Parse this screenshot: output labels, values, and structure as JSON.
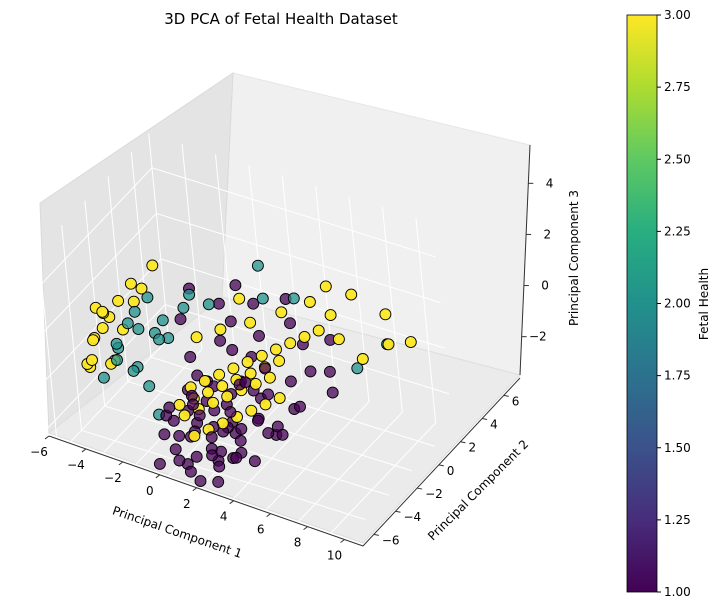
{
  "chart_data": {
    "type": "scatter",
    "title": "3D PCA of Fetal Health Dataset",
    "xlabel": "Principal Component 1",
    "ylabel": "Principal Component 2",
    "zlabel": "Principal Component 3",
    "xlim": [
      -6,
      11
    ],
    "ylim": [
      -7,
      7.5
    ],
    "zlim": [
      -3.5,
      5.5
    ],
    "xticks": [
      "−6",
      "−4",
      "−2",
      "0",
      "2",
      "4",
      "6",
      "8",
      "10"
    ],
    "yticks": [
      "−6",
      "−4",
      "−2",
      "0",
      "2",
      "4",
      "6"
    ],
    "zticks": [
      "−2",
      "0",
      "2",
      "4"
    ],
    "grid": true,
    "colorbar": {
      "label": "Fetal Health",
      "range": [
        1.0,
        3.0
      ],
      "colormap": "viridis",
      "ticks": [
        "1.00",
        "1.25",
        "1.50",
        "1.75",
        "2.00",
        "2.25",
        "2.50",
        "2.75",
        "3.00"
      ]
    },
    "series": [
      {
        "value": 1,
        "color": "#440154",
        "points": [
          [
            0.6,
            0.5,
            -2.3
          ],
          [
            1.2,
            -0.6,
            -1.8
          ],
          [
            2.1,
            1.3,
            -1.2
          ],
          [
            0.2,
            -1.4,
            -1.5
          ],
          [
            1.7,
            0.3,
            -2.7
          ],
          [
            2.8,
            -0.8,
            -0.9
          ],
          [
            0.9,
            1.8,
            -2.0
          ],
          [
            3.4,
            0.6,
            -1.6
          ],
          [
            1.5,
            -1.9,
            -1.0
          ],
          [
            2.4,
            2.2,
            -0.6
          ],
          [
            0.1,
            0.9,
            -0.8
          ],
          [
            3.9,
            -0.2,
            -2.1
          ],
          [
            1.1,
            -0.1,
            -0.3
          ],
          [
            2.9,
            1.1,
            -2.5
          ],
          [
            0.5,
            -0.8,
            -2.9
          ],
          [
            4.3,
            0.9,
            -1.1
          ],
          [
            1.9,
            -1.2,
            -2.2
          ],
          [
            0.8,
            1.4,
            -1.4
          ],
          [
            3.1,
            -1.5,
            -1.7
          ],
          [
            2.2,
            0.1,
            -3.0
          ],
          [
            -0.4,
            0.2,
            -1.9
          ],
          [
            1.4,
            2.6,
            -1.6
          ],
          [
            3.6,
            1.6,
            -0.4
          ],
          [
            2.6,
            -0.4,
            -2.9
          ],
          [
            0.3,
            -2.1,
            -2.4
          ],
          [
            4.8,
            0.2,
            -0.7
          ],
          [
            1.8,
            0.8,
            -0.2
          ],
          [
            2.7,
            -2.1,
            -2.6
          ],
          [
            0.0,
            1.5,
            -2.6
          ],
          [
            3.3,
            2.5,
            -1.3
          ],
          [
            1.3,
            -1.0,
            -3.1
          ],
          [
            4.1,
            -0.9,
            -1.9
          ],
          [
            2.0,
            1.9,
            -2.8
          ],
          [
            0.7,
            0.0,
            -1.1
          ],
          [
            3.7,
            -0.5,
            -0.2
          ],
          [
            5.2,
            1.2,
            -1.4
          ],
          [
            1.6,
            -2.4,
            -1.3
          ],
          [
            2.5,
            0.7,
            -1.8
          ],
          [
            0.4,
            2.1,
            -1.0
          ],
          [
            3.0,
            -1.1,
            -3.1
          ],
          [
            -0.2,
            -0.6,
            -1.2
          ],
          [
            4.5,
            1.9,
            -2.3
          ],
          [
            1.0,
            0.6,
            0.2
          ],
          [
            2.3,
            -1.6,
            0.4
          ],
          [
            3.8,
            0.3,
            0.6
          ],
          [
            5.6,
            -0.1,
            -0.9
          ],
          [
            0.9,
            -1.7,
            0.0
          ],
          [
            2.8,
            2.7,
            0.3
          ],
          [
            4.6,
            1.4,
            0.9
          ],
          [
            6.0,
            0.5,
            -1.2
          ],
          [
            1.7,
            1.0,
            -3.2
          ],
          [
            3.2,
            0.0,
            -2.6
          ],
          [
            0.6,
            -0.3,
            -3.3
          ],
          [
            2.1,
            -0.9,
            -0.5
          ],
          [
            4.0,
            2.2,
            -0.8
          ],
          [
            6.4,
            1.1,
            -0.3
          ],
          [
            5.0,
            -0.6,
            -2.0
          ],
          [
            3.5,
            -1.9,
            -0.6
          ],
          [
            1.2,
            2.4,
            0.8
          ],
          [
            0.2,
            1.2,
            0.5
          ],
          [
            2.6,
            1.5,
            1.2
          ],
          [
            4.4,
            0.0,
            1.0
          ],
          [
            5.8,
            1.8,
            0.4
          ],
          [
            7.0,
            0.8,
            0.1
          ],
          [
            6.6,
            2.4,
            0.7
          ],
          [
            3.0,
            3.2,
            1.0
          ],
          [
            1.5,
            3.0,
            1.4
          ],
          [
            -0.8,
            2.0,
            1.5
          ],
          [
            0.4,
            3.6,
            1.6
          ],
          [
            2.2,
            4.0,
            1.8
          ],
          [
            4.2,
            4.2,
            1.3
          ],
          [
            5.5,
            3.4,
            1.1
          ],
          [
            7.4,
            2.9,
            0.6
          ],
          [
            8.0,
            2.2,
            0.2
          ],
          [
            6.9,
            3.8,
            1.4
          ],
          [
            3.6,
            4.8,
            1.9
          ],
          [
            0.9,
            4.4,
            2.1
          ],
          [
            -1.2,
            3.4,
            2.0
          ],
          [
            1.8,
            2.0,
            -2.4
          ],
          [
            2.9,
            -0.2,
            -1.4
          ]
        ]
      },
      {
        "value": 2,
        "color": "#21918c",
        "points": [
          [
            -3.0,
            -0.4,
            1.2
          ],
          [
            -2.2,
            0.4,
            1.6
          ],
          [
            -2.6,
            -1.0,
            0.9
          ],
          [
            -1.6,
            0.9,
            1.3
          ],
          [
            -3.4,
            0.2,
            0.6
          ],
          [
            -2.0,
            -0.2,
            0.3
          ],
          [
            -1.2,
            1.4,
            0.9
          ],
          [
            -2.8,
            1.0,
            1.9
          ],
          [
            -1.8,
            -0.8,
            0.5
          ],
          [
            -0.9,
            0.3,
            1.5
          ],
          [
            -2.4,
            1.6,
            2.3
          ],
          [
            -0.4,
            1.8,
            2.2
          ],
          [
            -3.2,
            -1.4,
            0.2
          ],
          [
            -1.4,
            -0.2,
            -0.4
          ],
          [
            -1.9,
            2.0,
            1.2
          ],
          [
            -0.8,
            -0.4,
            -1.4
          ],
          [
            3.3,
            3.4,
            2.6
          ],
          [
            4.5,
            4.3,
            2.4
          ],
          [
            8.4,
            3.8,
            0.5
          ],
          [
            9.6,
            4.8,
            1.3
          ],
          [
            2.4,
            4.4,
            3.3
          ],
          [
            -0.6,
            2.6,
            2.3
          ],
          [
            0.4,
            2.8,
            2.0
          ],
          [
            -2.5,
            0.0,
            2.0
          ]
        ]
      },
      {
        "value": 3,
        "color": "#fde725",
        "points": [
          [
            -4.0,
            -0.5,
            2.6
          ],
          [
            -4.2,
            0.3,
            1.9
          ],
          [
            -3.8,
            -1.2,
            1.6
          ],
          [
            -4.4,
            1.0,
            1.3
          ],
          [
            -3.6,
            0.8,
            2.3
          ],
          [
            -4.5,
            -0.2,
            1.0
          ],
          [
            -3.9,
            -1.7,
            0.8
          ],
          [
            -4.1,
            1.6,
            0.5
          ],
          [
            -3.3,
            -0.9,
            2.8
          ],
          [
            -4.3,
            -1.0,
            0.2
          ],
          [
            -3.5,
            1.9,
            1.7
          ],
          [
            -3.7,
            -0.1,
            0.0
          ],
          [
            -2.9,
            -1.5,
            2.5
          ],
          [
            -4.0,
            0.6,
            -0.3
          ],
          [
            -3.1,
            1.3,
            2.9
          ],
          [
            -2.7,
            2.6,
            3.1
          ],
          [
            -3.2,
            -2.2,
            1.4
          ],
          [
            -2.4,
            1.2,
            2.9
          ],
          [
            1.0,
            0.0,
            0.0
          ],
          [
            1.6,
            0.4,
            0.2
          ],
          [
            2.2,
            0.8,
            0.4
          ],
          [
            2.8,
            1.2,
            0.6
          ],
          [
            3.4,
            1.6,
            0.8
          ],
          [
            4.0,
            2.0,
            1.0
          ],
          [
            4.6,
            2.4,
            1.2
          ],
          [
            5.2,
            2.8,
            1.4
          ],
          [
            5.8,
            3.2,
            1.6
          ],
          [
            6.4,
            3.6,
            1.8
          ],
          [
            0.6,
            -0.5,
            -0.6
          ],
          [
            1.2,
            -0.1,
            -0.4
          ],
          [
            1.8,
            0.3,
            -0.2
          ],
          [
            2.4,
            0.7,
            0.0
          ],
          [
            3.0,
            1.1,
            0.2
          ],
          [
            3.6,
            1.5,
            0.4
          ],
          [
            4.2,
            1.9,
            0.6
          ],
          [
            4.8,
            2.3,
            0.8
          ],
          [
            1.4,
            -1.2,
            -0.5
          ],
          [
            2.0,
            -0.8,
            -0.3
          ],
          [
            2.6,
            -0.4,
            -0.1
          ],
          [
            3.2,
            0.0,
            0.1
          ],
          [
            3.8,
            0.4,
            0.3
          ],
          [
            4.4,
            0.8,
            0.5
          ],
          [
            5.0,
            1.2,
            0.7
          ],
          [
            2.2,
            -1.6,
            -1.0
          ],
          [
            2.8,
            -1.2,
            -0.8
          ],
          [
            3.4,
            -0.8,
            -0.6
          ],
          [
            4.0,
            -0.4,
            -0.4
          ],
          [
            4.6,
            0.0,
            -0.2
          ],
          [
            5.2,
            0.4,
            0.0
          ],
          [
            5.8,
            0.8,
            0.2
          ],
          [
            3.0,
            2.6,
            1.9
          ],
          [
            4.2,
            3.6,
            2.1
          ],
          [
            5.4,
            4.4,
            2.4
          ],
          [
            6.6,
            4.4,
            2.1
          ],
          [
            7.6,
            3.6,
            1.7
          ],
          [
            8.8,
            3.8,
            1.0
          ],
          [
            10.0,
            4.4,
            1.6
          ],
          [
            9.2,
            5.4,
            2.2
          ],
          [
            10.6,
            5.4,
            1.3
          ],
          [
            7.2,
            5.4,
            2.6
          ],
          [
            2.0,
            3.2,
            2.4
          ],
          [
            6.0,
            5.0,
            2.9
          ],
          [
            0.4,
            1.6,
            1.2
          ],
          [
            1.6,
            2.0,
            1.6
          ]
        ]
      }
    ]
  }
}
